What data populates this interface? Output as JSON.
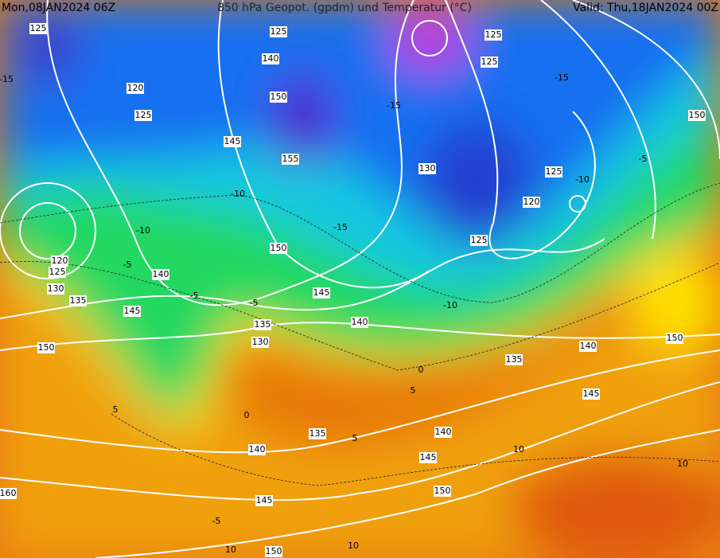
{
  "header": {
    "run": "Mon,08JAN2024 06Z",
    "title": "850 hPa Geopot. (gpdm) und Temperatur (°C)",
    "valid": "Valid: Thu,18JAN2024 00Z"
  },
  "geopotential_labels": [
    125,
    120,
    125,
    145,
    150,
    140,
    125,
    155,
    150,
    125,
    125,
    130,
    125,
    120,
    125,
    150,
    120,
    125,
    130,
    135,
    140,
    145,
    150,
    145,
    140,
    135,
    130,
    135,
    140,
    150,
    145,
    135,
    140,
    140,
    145,
    145,
    150,
    160,
    150
  ],
  "temperature_labels": [
    -15,
    -15,
    -10,
    -10,
    -10,
    -15,
    -15,
    -5,
    -5,
    -5,
    -5,
    0,
    5,
    5,
    10,
    10,
    5,
    -5,
    10,
    10,
    0,
    -10
  ]
}
